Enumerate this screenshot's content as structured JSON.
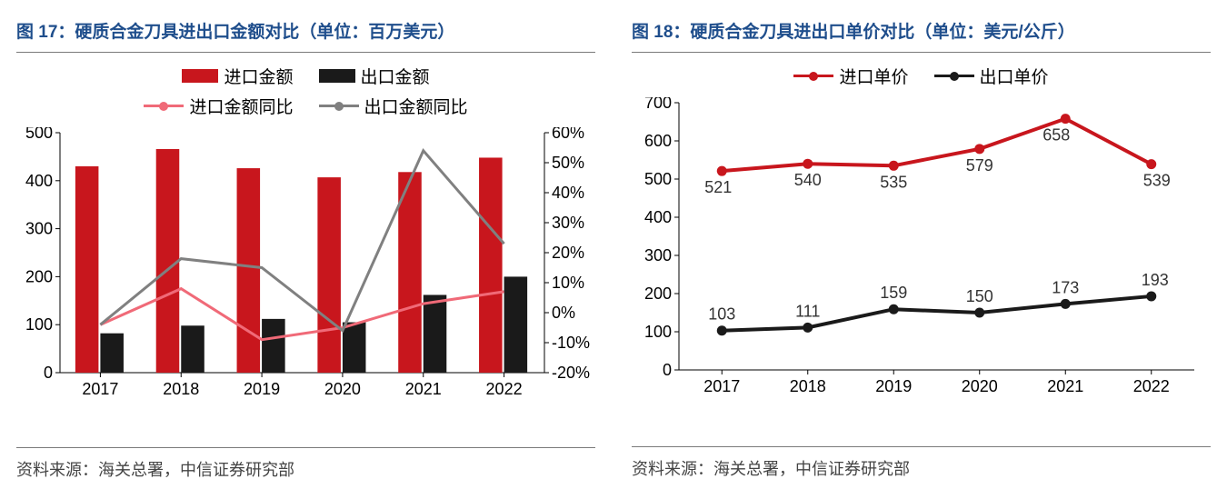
{
  "panels": [
    {
      "id": "fig17",
      "title": "图 17：硬质合金刀具进出口金额对比（单位：百万美元）",
      "source": "资料来源：海关总署，中信证券研究部",
      "type": "bar-line-dual-axis",
      "x_categories": [
        "2017",
        "2018",
        "2019",
        "2020",
        "2021",
        "2022"
      ],
      "y_left": {
        "min": 0,
        "max": 500,
        "step": 100
      },
      "y_right": {
        "min": -20,
        "max": 60,
        "step": 10,
        "suffix": "%"
      },
      "bars": [
        {
          "name": "进口金额",
          "color": "#c8161d",
          "values": [
            430,
            466,
            426,
            407,
            418,
            448
          ]
        },
        {
          "name": "出口金额",
          "color": "#1a1a1a",
          "values": [
            82,
            98,
            112,
            105,
            162,
            200
          ]
        }
      ],
      "lines_right": [
        {
          "name": "进口金额同比",
          "color": "#f06a78",
          "width": 3,
          "values": [
            -4,
            8,
            -9,
            -5,
            3,
            7
          ]
        },
        {
          "name": "出口金额同比",
          "color": "#808080",
          "width": 3,
          "values": [
            -4,
            18,
            15,
            -6,
            54,
            23
          ]
        }
      ],
      "bar_group_width": 0.62,
      "background": "#ffffff",
      "axis_color": "#000000",
      "label_fontsize": 18
    },
    {
      "id": "fig18",
      "title": "图 18：硬质合金刀具进出口单价对比（单位：美元/公斤）",
      "source": "资料来源：海关总署，中信证券研究部",
      "type": "line",
      "x_categories": [
        "2017",
        "2018",
        "2019",
        "2020",
        "2021",
        "2022"
      ],
      "y_left": {
        "min": 0,
        "max": 700,
        "step": 100
      },
      "series": [
        {
          "name": "进口单价",
          "color": "#c8161d",
          "marker": "circle",
          "values": [
            521,
            540,
            535,
            579,
            658,
            539
          ]
        },
        {
          "name": "出口单价",
          "color": "#1a1a1a",
          "marker": "circle",
          "values": [
            103,
            111,
            159,
            150,
            173,
            193
          ]
        }
      ],
      "line_width": 4,
      "marker_size": 9,
      "background": "#ffffff",
      "axis_color": "#000000",
      "label_fontsize": 18
    }
  ]
}
